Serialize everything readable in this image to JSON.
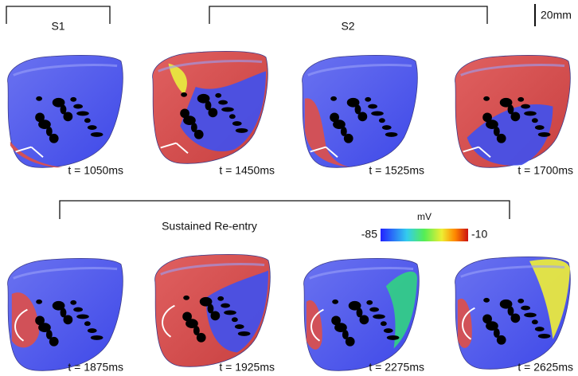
{
  "header": {
    "s1": "S1",
    "s2": "S2",
    "scale_bar": "20mm"
  },
  "row1_times": [
    "t = 1050ms",
    "t = 1450ms",
    "t = 1525ms",
    "t = 1700ms"
  ],
  "row2_title": "Sustained Re-entry",
  "row2_times": [
    "t = 1875ms",
    "t = 1925ms",
    "t = 2275ms",
    "t = 2625ms"
  ],
  "colorbar": {
    "unit": "mV",
    "min": -85,
    "max": -10
  }
}
